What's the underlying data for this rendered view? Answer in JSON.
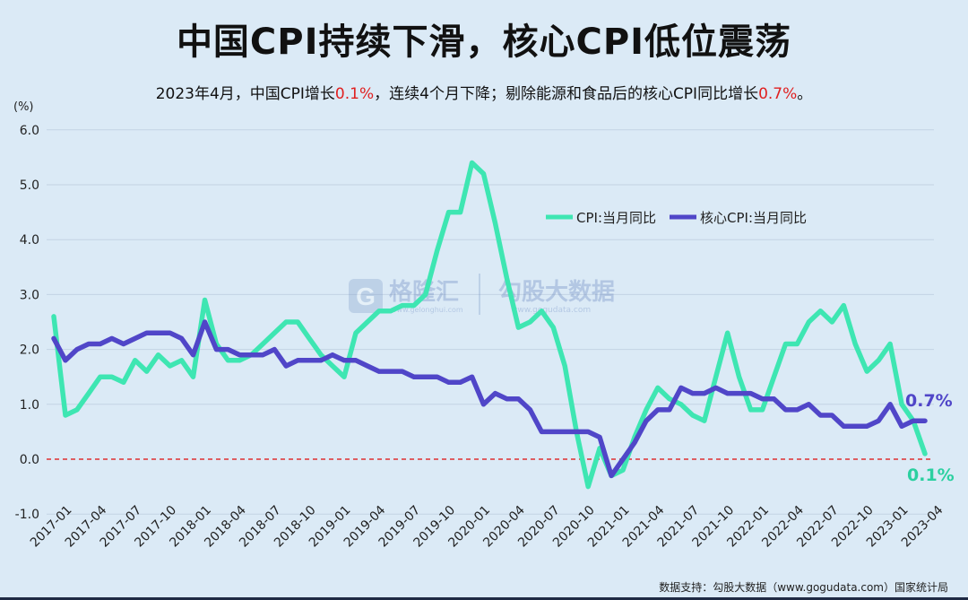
{
  "header": {
    "title": "中国CPI持续下滑，核心CPI低位震荡",
    "subtitle_parts": [
      "2023年4月，中国CPI增长",
      "0.1%",
      "，连续4个月下降；剔除能源和食品后的核心CPI同比增长",
      "0.7%",
      "。"
    ]
  },
  "watermark": {
    "brand1": "格隆汇",
    "brand1_sub": "www.gelonghui.com",
    "brand2": "勾股大数据",
    "brand2_sub": "www.gogudata.com"
  },
  "footer": {
    "source": "数据支持：勾股大数据（www.gogudata.com）国家统计局"
  },
  "colors": {
    "cpi": "#3ee6b2",
    "core": "#5046c8",
    "zero_line": "#e03030",
    "cpi_label": "#2bd0a0",
    "core_label": "#5046c8"
  },
  "chart_data": {
    "type": "line",
    "unit_label": "(%)",
    "ylim": [
      -1.0,
      6.0
    ],
    "yticks": [
      "6.0",
      "5.0",
      "4.0",
      "3.0",
      "2.0",
      "1.0",
      "0.0",
      "-1.0"
    ],
    "xtick_labels": [
      "2017-01",
      "2017-04",
      "2017-07",
      "2017-10",
      "2018-01",
      "2018-04",
      "2018-07",
      "2018-10",
      "2019-01",
      "2019-04",
      "2019-07",
      "2019-10",
      "2020-01",
      "2020-04",
      "2020-07",
      "2020-10",
      "2021-01",
      "2021-04",
      "2021-07",
      "2021-10",
      "2022-01",
      "2022-04",
      "2022-07",
      "2022-10",
      "2023-01",
      "2023-04"
    ],
    "x_start": "2017-01",
    "x_end": "2023-04",
    "legend_position": "upper-right",
    "end_labels": {
      "cpi": "0.1%",
      "core": "0.7%"
    },
    "series": [
      {
        "name": "CPI:当月同比",
        "values": [
          2.6,
          0.8,
          0.9,
          1.2,
          1.5,
          1.5,
          1.4,
          1.8,
          1.6,
          1.9,
          1.7,
          1.8,
          1.5,
          2.9,
          2.1,
          1.8,
          1.8,
          1.9,
          2.1,
          2.3,
          2.5,
          2.5,
          2.2,
          1.9,
          1.7,
          1.5,
          2.3,
          2.5,
          2.7,
          2.7,
          2.8,
          2.8,
          3.0,
          3.8,
          4.5,
          4.5,
          5.4,
          5.2,
          4.3,
          3.3,
          2.4,
          2.5,
          2.7,
          2.4,
          1.7,
          0.5,
          -0.5,
          0.2,
          -0.3,
          -0.2,
          0.4,
          0.9,
          1.3,
          1.1,
          1.0,
          0.8,
          0.7,
          1.5,
          2.3,
          1.5,
          0.9,
          0.9,
          1.5,
          2.1,
          2.1,
          2.5,
          2.7,
          2.5,
          2.8,
          2.1,
          1.6,
          1.8,
          2.1,
          1.0,
          0.7,
          0.1
        ]
      },
      {
        "name": "核心CPI:当月同比",
        "values": [
          2.2,
          1.8,
          2.0,
          2.1,
          2.1,
          2.2,
          2.1,
          2.2,
          2.3,
          2.3,
          2.3,
          2.2,
          1.9,
          2.5,
          2.0,
          2.0,
          1.9,
          1.9,
          1.9,
          2.0,
          1.7,
          1.8,
          1.8,
          1.8,
          1.9,
          1.8,
          1.8,
          1.7,
          1.6,
          1.6,
          1.6,
          1.5,
          1.5,
          1.5,
          1.4,
          1.4,
          1.5,
          1.0,
          1.2,
          1.1,
          1.1,
          0.9,
          0.5,
          0.5,
          0.5,
          0.5,
          0.5,
          0.4,
          -0.3,
          0.0,
          0.3,
          0.7,
          0.9,
          0.9,
          1.3,
          1.2,
          1.2,
          1.3,
          1.2,
          1.2,
          1.2,
          1.1,
          1.1,
          0.9,
          0.9,
          1.0,
          0.8,
          0.8,
          0.6,
          0.6,
          0.6,
          0.7,
          1.0,
          0.6,
          0.7,
          0.7
        ]
      }
    ]
  }
}
